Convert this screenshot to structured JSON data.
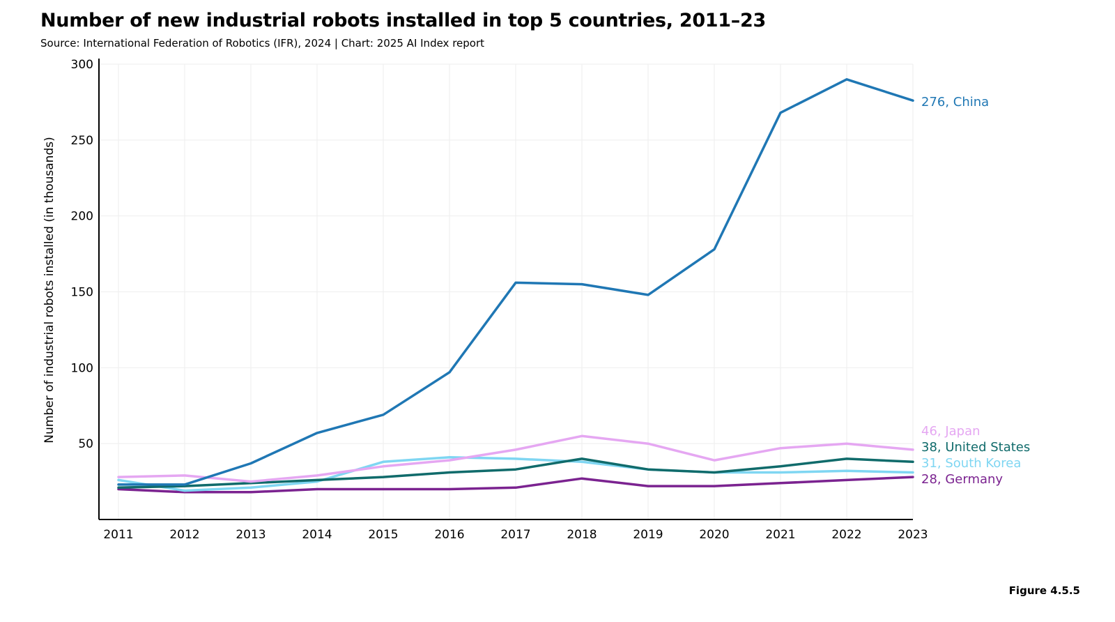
{
  "title": "Number of new industrial robots installed in top 5 countries, 2011–23",
  "subtitle": "Source: International Federation of Robotics (IFR), 2024 | Chart: 2025 AI Index report",
  "figure_label": "Figure 4.5.5",
  "chart_data": {
    "type": "line",
    "title": "Number of new industrial robots installed in top 5 countries, 2011–23",
    "ylabel": "Number of industrial robots installed (in thousands)",
    "xlabel": "",
    "x": [
      "2011",
      "2012",
      "2013",
      "2014",
      "2015",
      "2016",
      "2017",
      "2018",
      "2019",
      "2020",
      "2021",
      "2022",
      "2023"
    ],
    "ylim": [
      0,
      300
    ],
    "yticks": [
      "50",
      "100",
      "150",
      "200",
      "250",
      "300"
    ],
    "grid": true,
    "series": [
      {
        "name": "China",
        "color": "#1f77b4",
        "end_label": "276, China",
        "values": [
          23,
          23,
          37,
          57,
          69,
          97,
          156,
          155,
          148,
          178,
          268,
          290,
          276
        ]
      },
      {
        "name": "Japan",
        "color": "#e5a7f2",
        "end_label": "46, Japan",
        "values": [
          28,
          29,
          25,
          29,
          35,
          39,
          46,
          55,
          50,
          39,
          47,
          50,
          46
        ]
      },
      {
        "name": "United States",
        "color": "#106b6b",
        "end_label": "38, United States",
        "values": [
          21,
          22,
          24,
          26,
          28,
          31,
          33,
          40,
          33,
          31,
          35,
          40,
          38
        ]
      },
      {
        "name": "South Korea",
        "color": "#7fd6f2",
        "end_label": "31, South Korea",
        "values": [
          26,
          19,
          21,
          25,
          38,
          41,
          40,
          38,
          33,
          31,
          31,
          32,
          31
        ]
      },
      {
        "name": "Germany",
        "color": "#7b2390",
        "end_label": "28, Germany",
        "values": [
          20,
          18,
          18,
          20,
          20,
          20,
          21,
          27,
          22,
          22,
          24,
          26,
          28
        ]
      }
    ]
  }
}
